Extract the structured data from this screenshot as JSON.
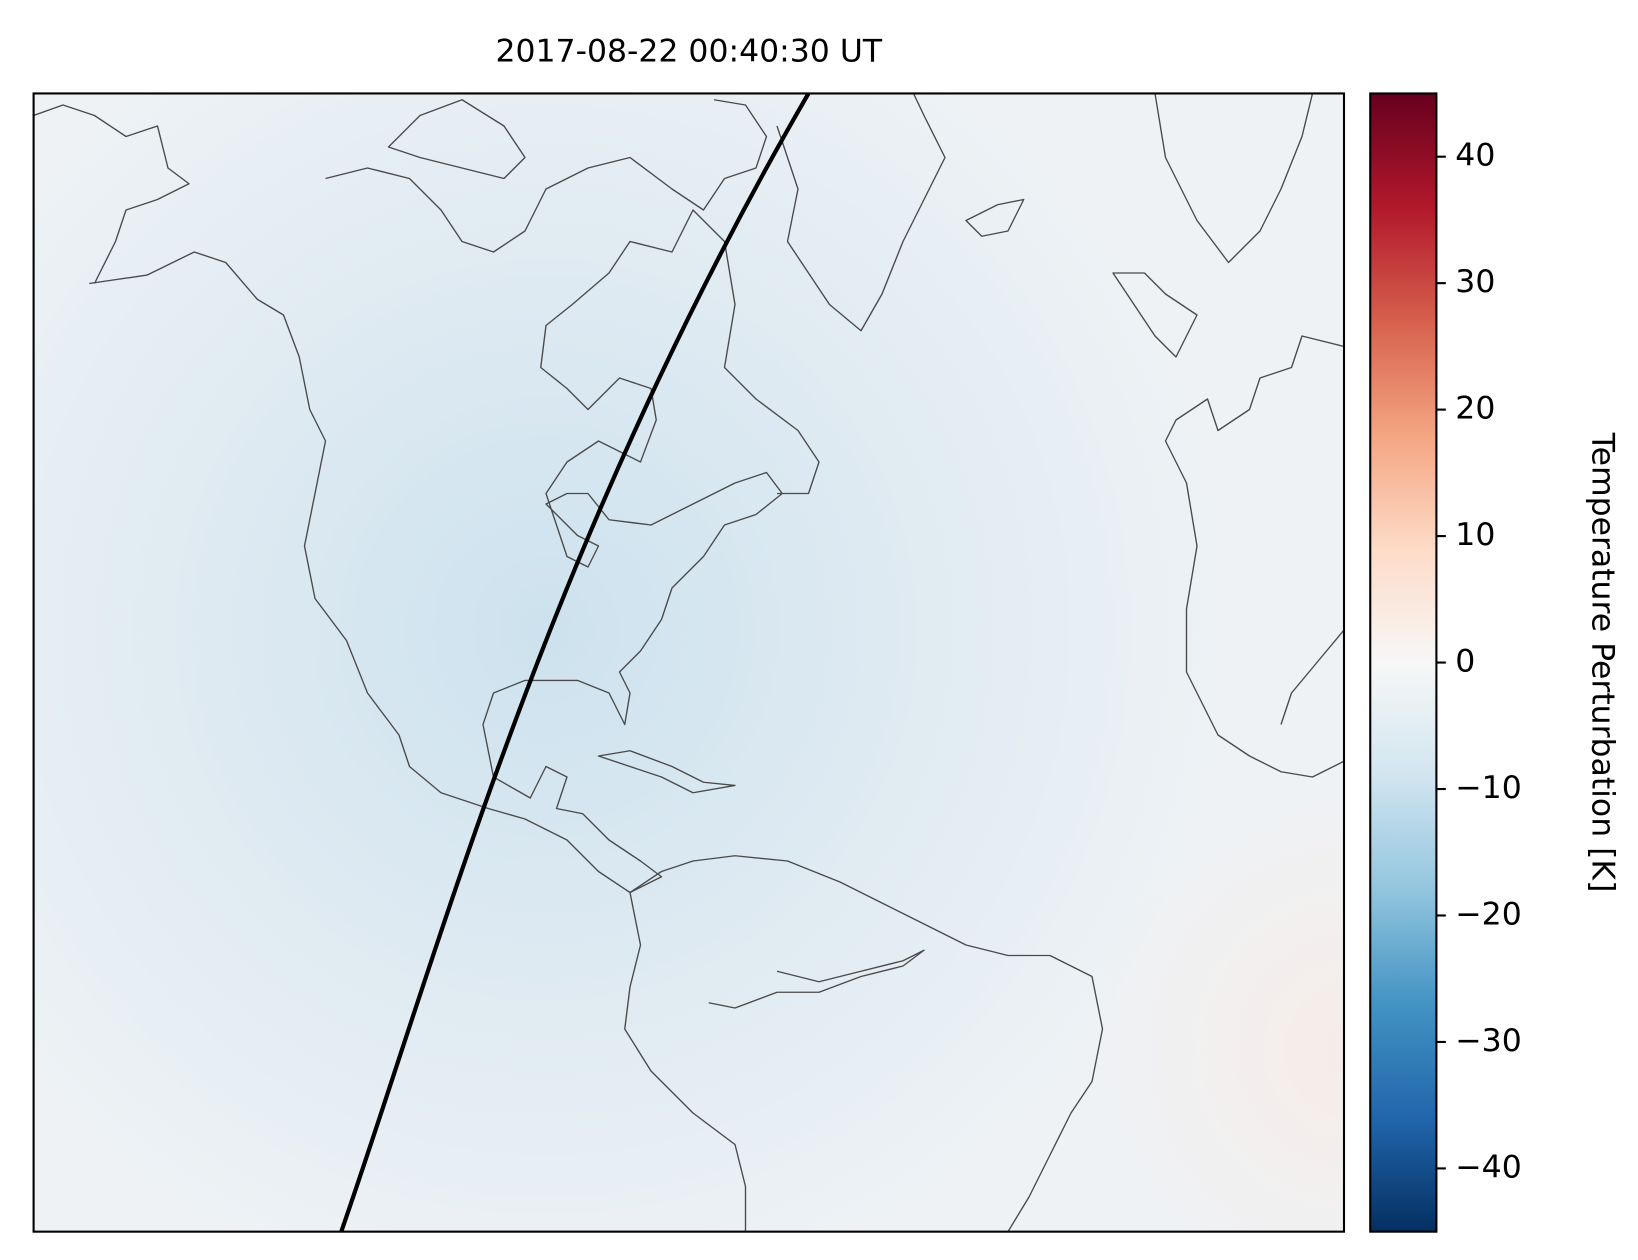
{
  "chart_data": {
    "type": "map",
    "title": "2017-08-22 00:40:30 UT",
    "colorbar_label": "Temperature Perturbation [K]",
    "clim": [
      -45,
      45
    ],
    "cticks": [
      {
        "value": -40,
        "label": "−40"
      },
      {
        "value": -30,
        "label": "−30"
      },
      {
        "value": -20,
        "label": "−20"
      },
      {
        "value": -10,
        "label": "−10"
      },
      0,
      10,
      20,
      30,
      40
    ]
  }
}
